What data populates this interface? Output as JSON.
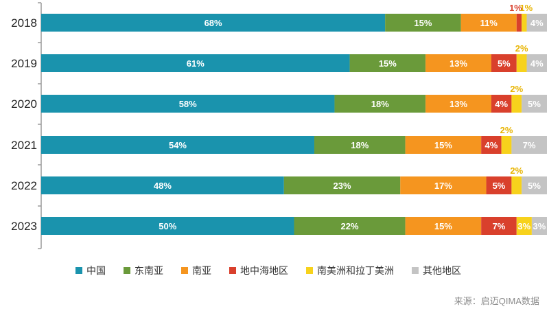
{
  "chart_data": {
    "type": "bar",
    "orientation": "horizontal",
    "stacked": true,
    "percent_stacked": true,
    "categories": [
      "2018",
      "2019",
      "2020",
      "2021",
      "2022",
      "2023"
    ],
    "series": [
      {
        "name": "中国",
        "color": "#1a93ad",
        "values": [
          68,
          61,
          58,
          54,
          48,
          50
        ]
      },
      {
        "name": "东南亚",
        "color": "#6a9a3a",
        "values": [
          15,
          15,
          18,
          18,
          23,
          22
        ]
      },
      {
        "name": "南亚",
        "color": "#f5951f",
        "values": [
          11,
          13,
          13,
          15,
          17,
          15
        ]
      },
      {
        "name": "地中海地区",
        "color": "#d9402c",
        "values": [
          1,
          5,
          4,
          4,
          5,
          7
        ]
      },
      {
        "name": "南美洲和拉丁美洲",
        "color": "#f7d21c",
        "values": [
          1,
          2,
          2,
          2,
          2,
          3
        ]
      },
      {
        "name": "其他地区",
        "color": "#c4c4c4",
        "values": [
          4,
          4,
          5,
          7,
          5,
          3
        ]
      }
    ],
    "label_colors": {
      "inside": "#ffffff",
      "above_red": "#d9402c",
      "above_yellow": "#e8b400"
    },
    "grid": false,
    "legend_position": "bottom"
  },
  "source": "来源：启迈QIMA数据"
}
